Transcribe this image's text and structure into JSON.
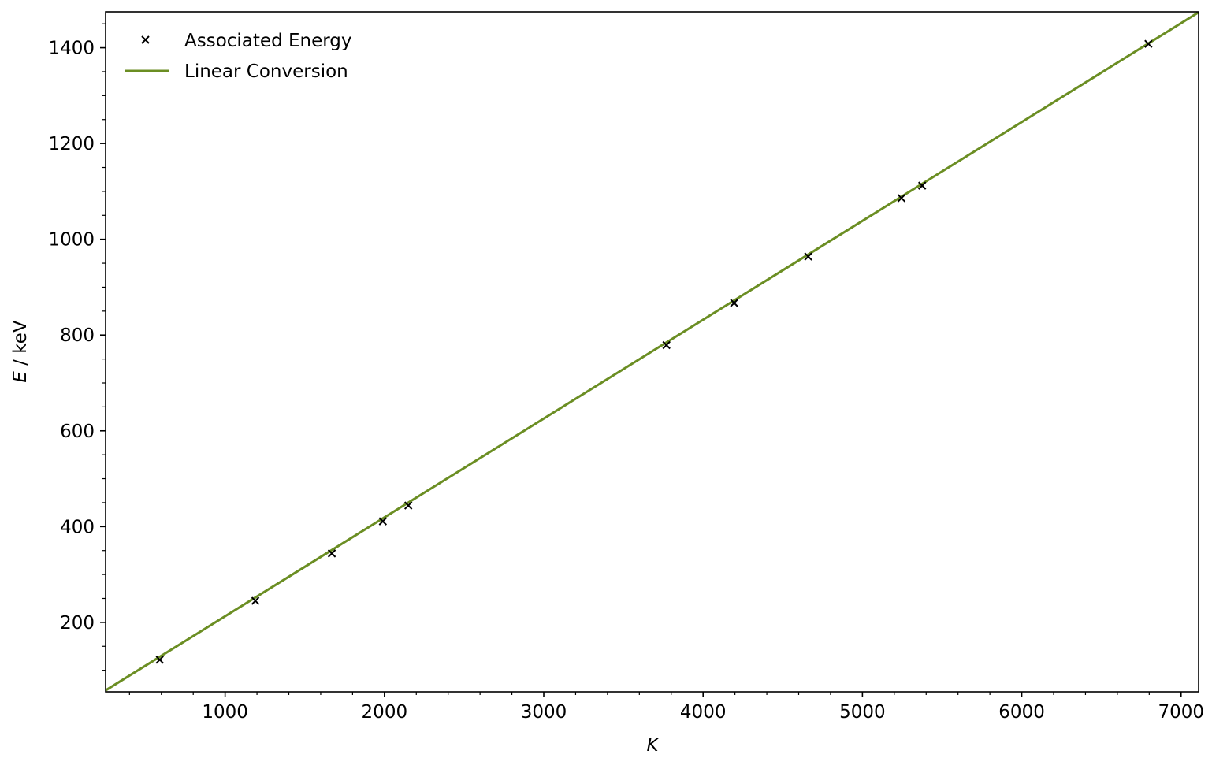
{
  "chart_data": {
    "type": "scatter",
    "xlabel_italic": "K",
    "ylabel_italic": "E",
    "ylabel_rest": " / keV",
    "xlim": [
      250,
      7110
    ],
    "ylim": [
      55,
      1475
    ],
    "x_major_ticks": [
      1000,
      2000,
      3000,
      4000,
      5000,
      6000,
      7000
    ],
    "x_minor_step": 200,
    "y_major_ticks": [
      200,
      400,
      600,
      800,
      1000,
      1200,
      1400
    ],
    "y_minor_step": 50,
    "grid": false,
    "legend_position": "top-left",
    "series": [
      {
        "name": "Associated Energy",
        "kind": "scatter",
        "marker": "x",
        "color": "#000000",
        "x": [
          590,
          1190,
          1670,
          1990,
          2150,
          3770,
          4195,
          4660,
          5245,
          5375,
          6795
        ],
        "y": [
          122,
          245,
          344,
          411,
          444,
          779,
          867,
          964,
          1086,
          1112,
          1408
        ]
      },
      {
        "name": "Linear Conversion",
        "kind": "line",
        "color": "#6b8e23",
        "x": [
          250,
          7110
        ],
        "y": [
          58,
          1474
        ]
      }
    ]
  }
}
